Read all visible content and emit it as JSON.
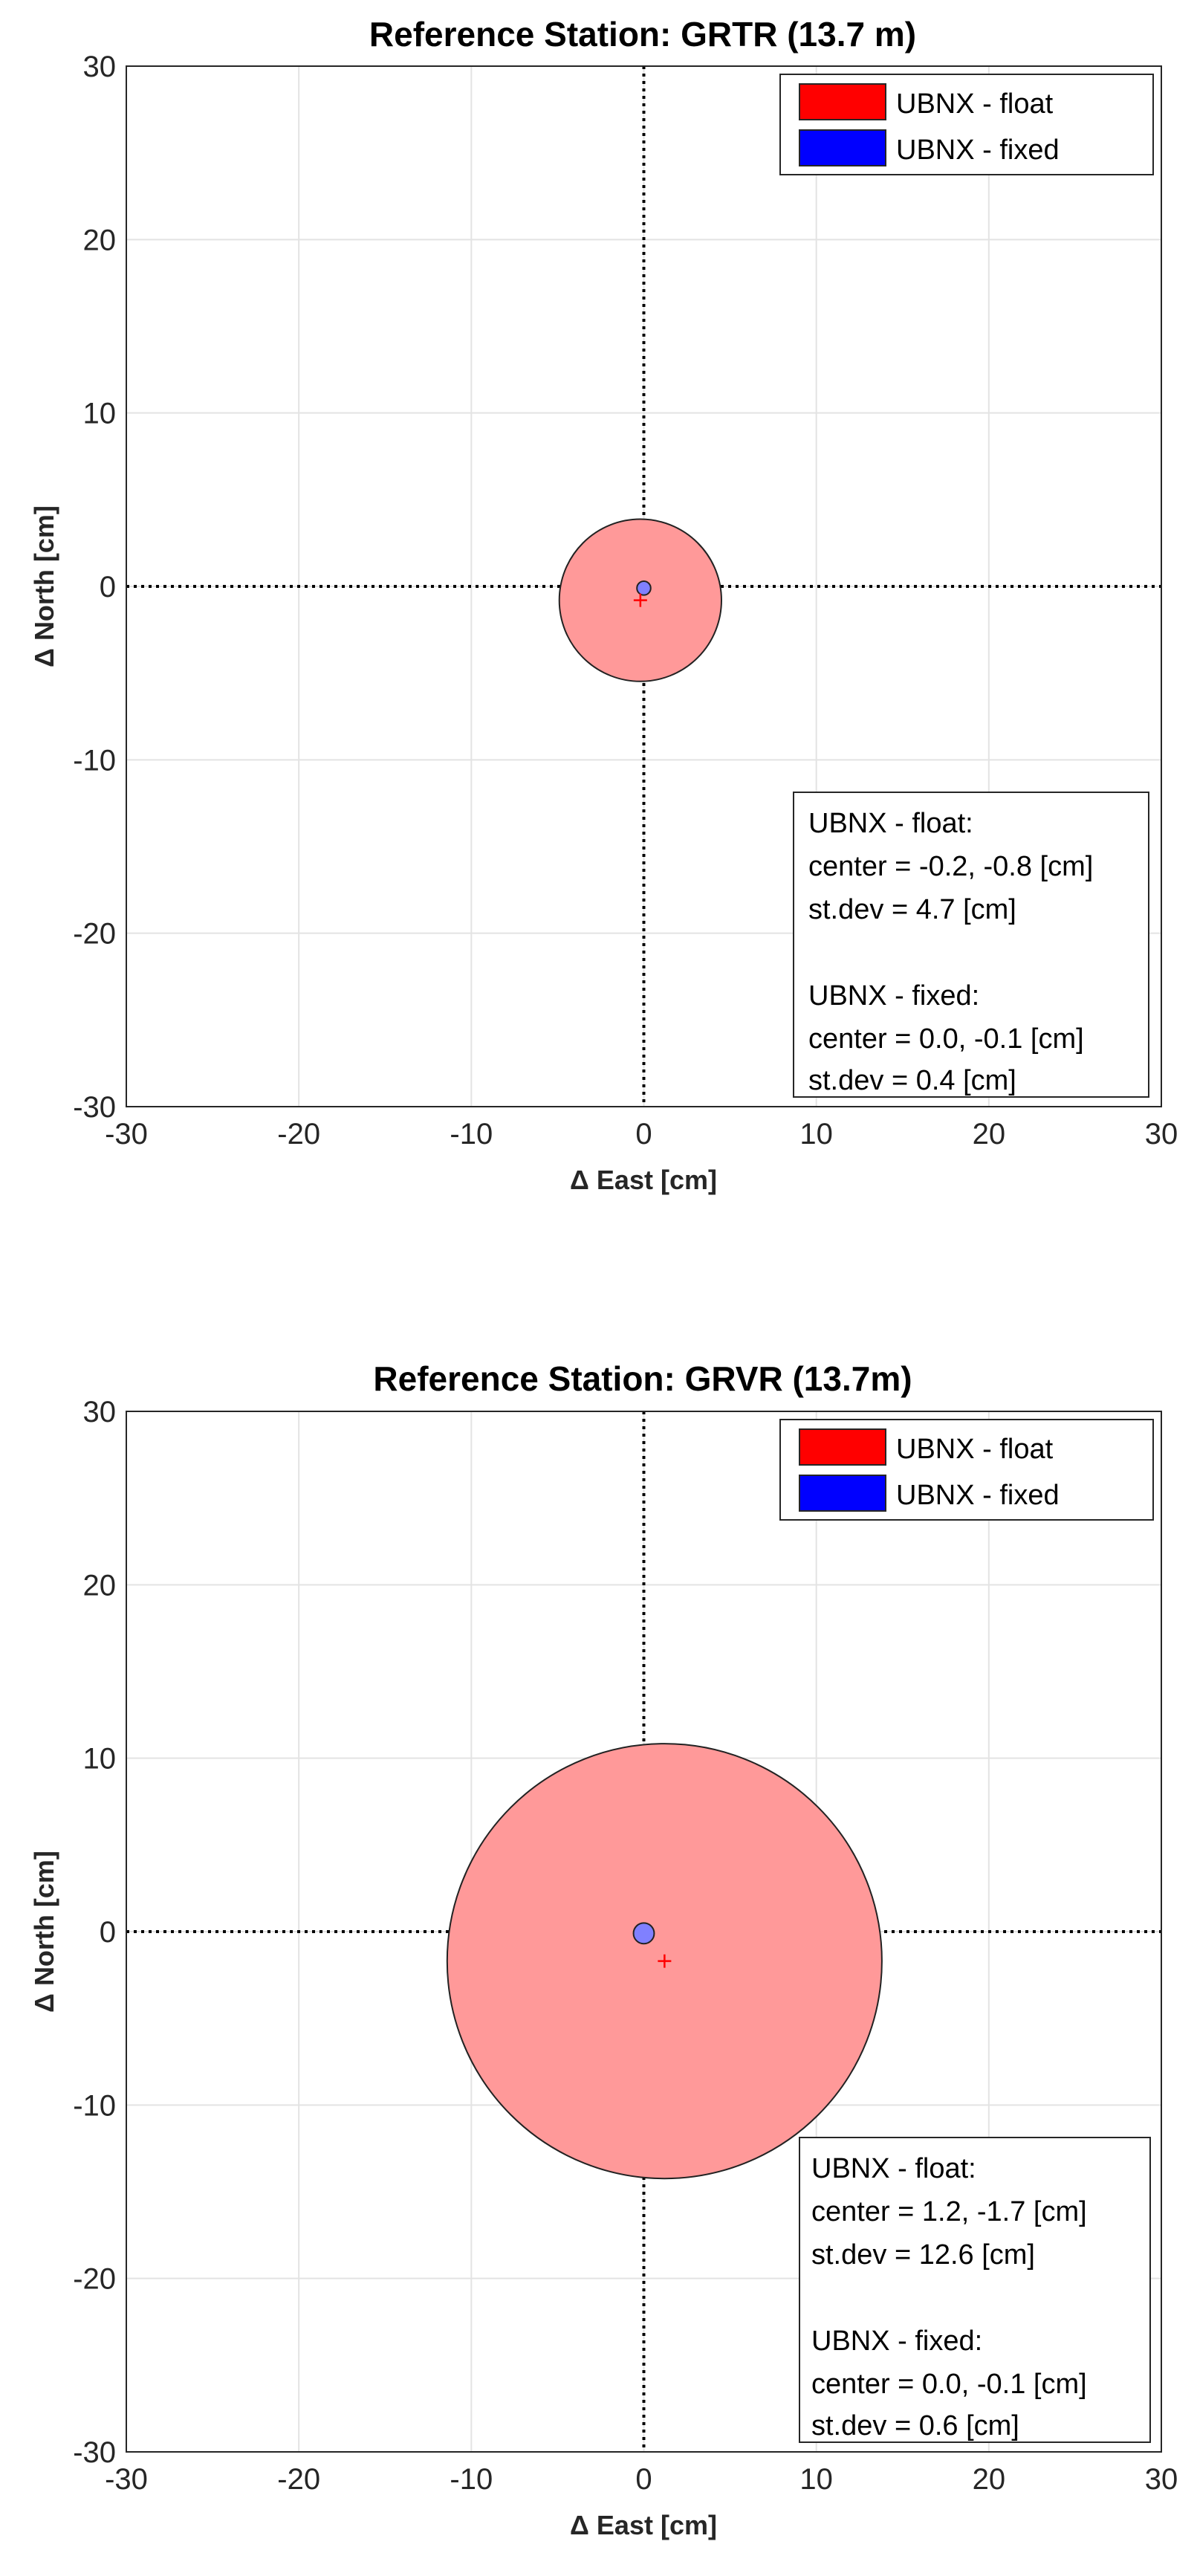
{
  "chart_data": [
    {
      "type": "scatter",
      "title": "Reference Station: GRTR (13.7 m)",
      "xlabel": "Δ East [cm]",
      "ylabel": "Δ North [cm]",
      "xlim": [
        -30,
        30
      ],
      "ylim": [
        -30,
        30
      ],
      "xticks": [
        "-30",
        "-20",
        "-10",
        "0",
        "10",
        "20",
        "30"
      ],
      "yticks": [
        "30",
        "20",
        "10",
        "0",
        "-10",
        "-20",
        "-30"
      ],
      "grid": true,
      "legend_position": "top-right",
      "series": [
        {
          "name": "UBNX - float",
          "color": "#ff0000",
          "fill": "#ff9999",
          "center": [
            -0.2,
            -0.8
          ],
          "radius": 4.7
        },
        {
          "name": "UBNX - fixed",
          "color": "#0000ff",
          "fill": "#8080ff",
          "center": [
            0.0,
            -0.1
          ],
          "radius": 0.4
        }
      ],
      "stats_box": {
        "position": "bottom-right",
        "lines": [
          "UBNX - float:",
          "center = -0.2, -0.8 [cm]",
          "st.dev = 4.7 [cm]",
          "",
          "UBNX - fixed:",
          "center = 0.0, -0.1 [cm]",
          "st.dev = 0.4 [cm]"
        ]
      }
    },
    {
      "type": "scatter",
      "title": "Reference Station: GRVR (13.7m)",
      "xlabel": "Δ East [cm]",
      "ylabel": "Δ North [cm]",
      "xlim": [
        -30,
        30
      ],
      "ylim": [
        -30,
        30
      ],
      "xticks": [
        "-30",
        "-20",
        "-10",
        "0",
        "10",
        "20",
        "30"
      ],
      "yticks": [
        "30",
        "20",
        "10",
        "0",
        "-10",
        "-20",
        "-30"
      ],
      "grid": true,
      "legend_position": "top-right",
      "series": [
        {
          "name": "UBNX - float",
          "color": "#ff0000",
          "fill": "#ff9999",
          "center": [
            1.2,
            -1.7
          ],
          "radius": 12.6
        },
        {
          "name": "UBNX - fixed",
          "color": "#0000ff",
          "fill": "#8080ff",
          "center": [
            0.0,
            -0.1
          ],
          "radius": 0.6
        }
      ],
      "stats_box": {
        "position": "bottom-right",
        "lines": [
          "UBNX - float:",
          "center = 1.2, -1.7 [cm]",
          "st.dev = 12.6 [cm]",
          "",
          "UBNX - fixed:",
          "center = 0.0, -0.1 [cm]",
          "st.dev = 0.6 [cm]"
        ]
      }
    }
  ]
}
